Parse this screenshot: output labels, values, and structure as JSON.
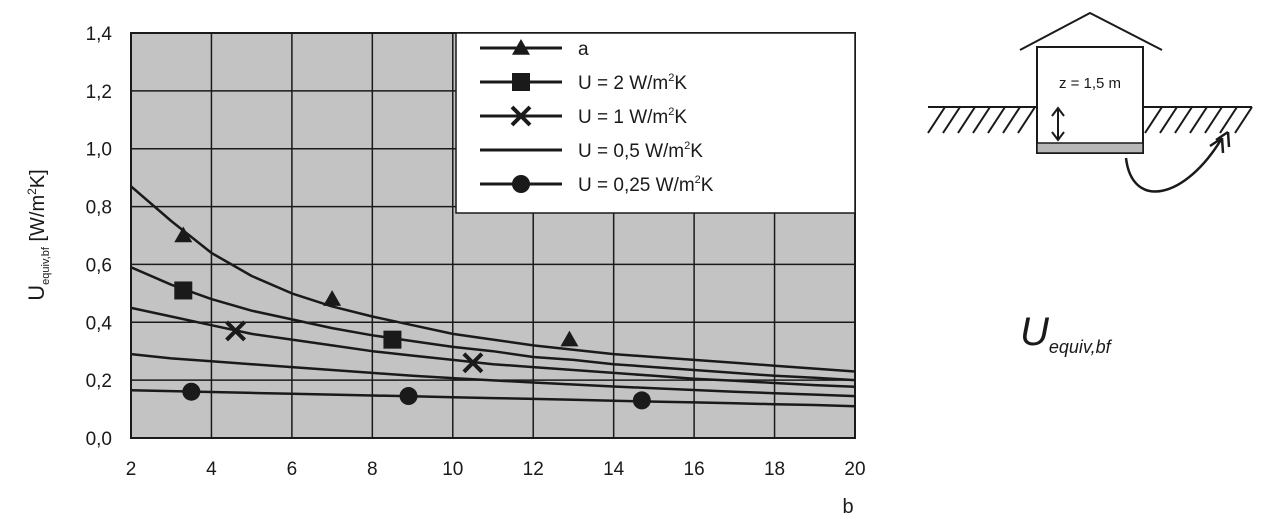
{
  "chart_data": {
    "type": "line",
    "title": "",
    "xlabel": "b",
    "ylabel": "U",
    "ylabel_sub": "equiv,bf",
    "ylabel_unit_pre": " [W/m",
    "ylabel_unit_sup": "2",
    "ylabel_unit_post": "K]",
    "xlim": [
      2,
      20
    ],
    "ylim": [
      0,
      1.4
    ],
    "x_ticks": [
      2,
      4,
      6,
      8,
      10,
      12,
      14,
      16,
      18,
      20
    ],
    "x_tick_labels": [
      "2",
      "4",
      "6",
      "8",
      "10",
      "12",
      "14",
      "16",
      "18",
      "20"
    ],
    "y_ticks": [
      0,
      0.2,
      0.4,
      0.6,
      0.8,
      1.0,
      1.2,
      1.4
    ],
    "y_tick_labels": [
      "0,0",
      "0,2",
      "0,4",
      "0,6",
      "0,8",
      "1,0",
      "1,2",
      "1,4"
    ],
    "grid": true,
    "legend_position": "top-right",
    "x": [
      2,
      3,
      4,
      5,
      6,
      7,
      8,
      9,
      10,
      11,
      12,
      13,
      14,
      15,
      16,
      17,
      18,
      19,
      20
    ],
    "series": [
      {
        "name": "a",
        "label_pre": "a",
        "label_sup": "",
        "label_post": "",
        "marker": "triangle",
        "values": [
          0.87,
          0.75,
          0.64,
          0.56,
          0.5,
          0.455,
          0.42,
          0.39,
          0.36,
          0.34,
          0.32,
          0.305,
          0.29,
          0.28,
          0.27,
          0.26,
          0.25,
          0.24,
          0.23
        ],
        "marker_points": [
          [
            3.3,
            0.7
          ],
          [
            7.0,
            0.48
          ],
          [
            12.9,
            0.34
          ]
        ]
      },
      {
        "name": "U = 2 W/m²K",
        "label_pre": "U = 2 W/m",
        "label_sup": "2",
        "label_post": "K",
        "marker": "square",
        "values": [
          0.59,
          0.53,
          0.48,
          0.44,
          0.41,
          0.38,
          0.355,
          0.335,
          0.315,
          0.3,
          0.28,
          0.27,
          0.255,
          0.245,
          0.235,
          0.225,
          0.215,
          0.208,
          0.2
        ],
        "marker_points": [
          [
            3.3,
            0.51
          ],
          [
            8.5,
            0.34
          ]
        ]
      },
      {
        "name": "U = 1 W/m²K",
        "label_pre": "U = 1 W/m",
        "label_sup": "2",
        "label_post": "K",
        "marker": "cross",
        "values": [
          0.45,
          0.42,
          0.39,
          0.36,
          0.34,
          0.32,
          0.3,
          0.285,
          0.27,
          0.255,
          0.245,
          0.235,
          0.225,
          0.215,
          0.205,
          0.198,
          0.19,
          0.183,
          0.177
        ],
        "marker_points": [
          [
            4.6,
            0.37
          ],
          [
            10.5,
            0.26
          ]
        ]
      },
      {
        "name": "U = 0,5 W/m²K",
        "label_pre": "U = 0,5 W/m",
        "label_sup": "2",
        "label_post": "K",
        "marker": "none",
        "values": [
          0.29,
          0.275,
          0.265,
          0.255,
          0.245,
          0.235,
          0.225,
          0.215,
          0.207,
          0.199,
          0.192,
          0.185,
          0.178,
          0.172,
          0.166,
          0.16,
          0.155,
          0.15,
          0.145
        ],
        "marker_points": []
      },
      {
        "name": "U = 0,25 W/m²K",
        "label_pre": "U = 0,25 W/m",
        "label_sup": "2",
        "label_post": "K",
        "marker": "circle",
        "values": [
          0.165,
          0.162,
          0.159,
          0.156,
          0.153,
          0.15,
          0.147,
          0.144,
          0.141,
          0.138,
          0.135,
          0.132,
          0.129,
          0.126,
          0.123,
          0.12,
          0.117,
          0.114,
          0.11
        ],
        "marker_points": [
          [
            3.5,
            0.16
          ],
          [
            8.9,
            0.145
          ],
          [
            14.7,
            0.13
          ]
        ]
      }
    ],
    "colors": {
      "plot_background": "#c3c3c3",
      "grid": "#1a1a1a",
      "line": "#1a1a1a",
      "legend_background": "#ffffff"
    }
  },
  "inset": {
    "depth_label": "z = 1,5 m",
    "symbol_main": "U",
    "symbol_sub": "equiv,bf"
  }
}
